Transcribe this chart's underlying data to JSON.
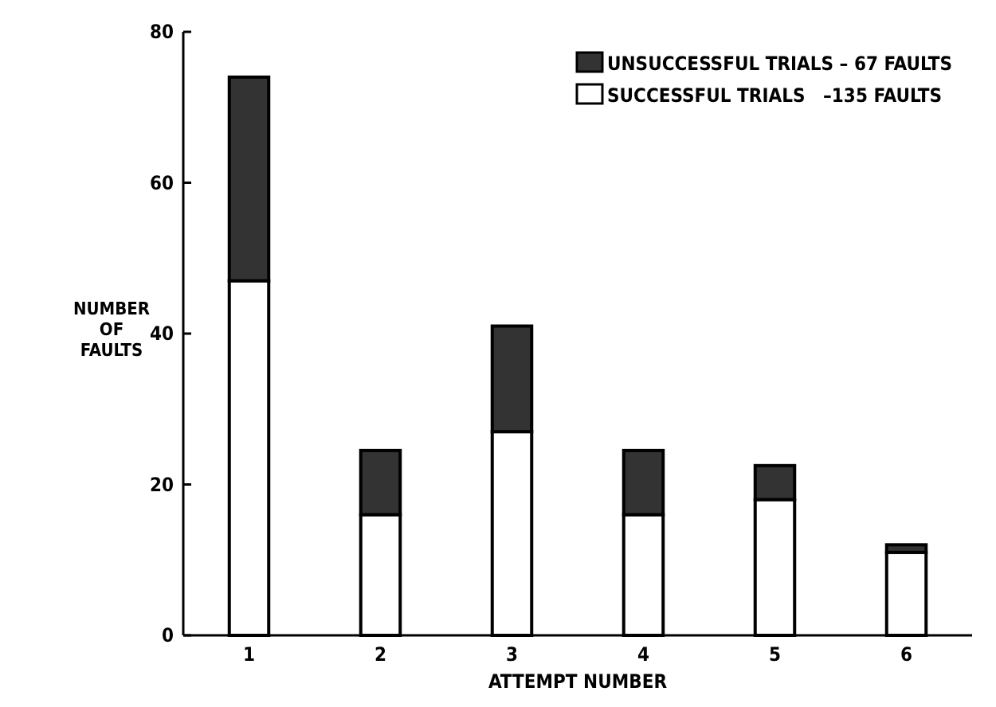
{
  "chart_data": {
    "type": "bar",
    "stacked": true,
    "xlabel": "ATTEMPT NUMBER",
    "ylabel": "NUMBER OF FAULTS",
    "categories": [
      "1",
      "2",
      "3",
      "4",
      "5",
      "6"
    ],
    "ylim": [
      0,
      80
    ],
    "yticks": [
      0,
      20,
      40,
      60,
      80
    ],
    "legend": "top right",
    "grid": false,
    "series": [
      {
        "name": "SUCCESSFUL TRIALS   –135 FAULTS",
        "color": "#ffffff",
        "values": [
          47,
          16,
          27,
          16,
          18,
          11
        ]
      },
      {
        "name": "UNSUCCESSFUL TRIALS – 67 FAULTS",
        "color": "#333333",
        "values": [
          27,
          8.5,
          14,
          8.5,
          4.5,
          1
        ]
      }
    ]
  }
}
